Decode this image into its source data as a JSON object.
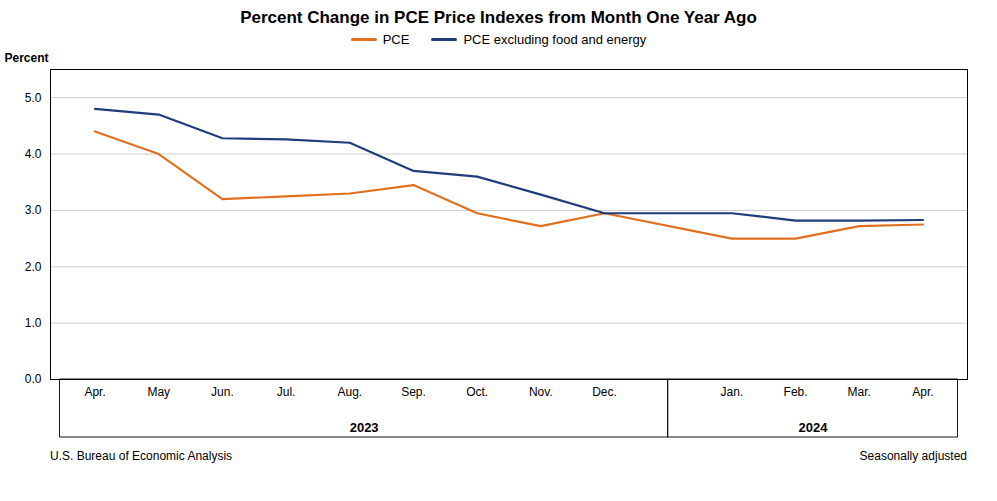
{
  "chart_data": {
    "type": "line",
    "title": "Percent Change in PCE Price Indexes from Month One Year Ago",
    "ylabel": "Percent",
    "categories": [
      "Apr.",
      "May",
      "Jun.",
      "Jul.",
      "Aug.",
      "Sep.",
      "Oct.",
      "Nov.",
      "Dec.",
      "Jan.",
      "Feb.",
      "Mar.",
      "Apr."
    ],
    "category_groups": [
      {
        "label": "2023",
        "count": 9
      },
      {
        "label": "2024",
        "count": 4
      }
    ],
    "series": [
      {
        "name": "PCE",
        "color": "#E07020",
        "values": [
          4.4,
          4.0,
          3.2,
          3.25,
          3.3,
          3.45,
          2.95,
          2.72,
          2.95,
          2.5,
          2.5,
          2.72,
          2.75
        ]
      },
      {
        "name": "PCE excluding food and energy",
        "color": "#1F3D7A",
        "values": [
          4.8,
          4.7,
          4.28,
          4.26,
          4.2,
          3.7,
          3.6,
          3.28,
          2.95,
          2.95,
          2.82,
          2.82,
          2.83
        ]
      }
    ],
    "ylim": [
      0.0,
      5.5
    ],
    "yticks": [
      {
        "value": 0.0,
        "label": "0.0"
      },
      {
        "value": 1.0,
        "label": "1.0"
      },
      {
        "value": 2.0,
        "label": "2.0"
      },
      {
        "value": 3.0,
        "label": "3.0"
      },
      {
        "value": 4.0,
        "label": "4.0"
      },
      {
        "value": 5.0,
        "label": "5.0"
      }
    ],
    "grid": true,
    "legend": "top",
    "annotations": [
      "U.S. Bureau of Economic Analysis",
      "Seasonally adjusted"
    ]
  }
}
